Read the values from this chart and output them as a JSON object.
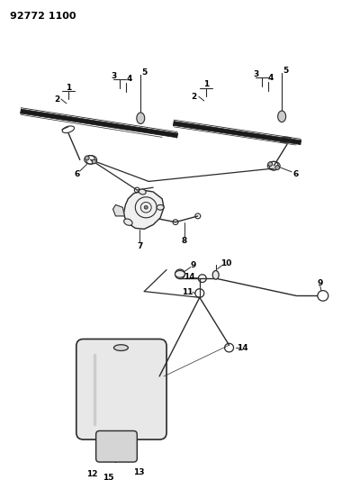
{
  "title": "92772 1100",
  "bg_color": "#ffffff",
  "line_color": "#2a2a2a",
  "fig_width": 3.9,
  "fig_height": 5.33,
  "dpi": 100
}
